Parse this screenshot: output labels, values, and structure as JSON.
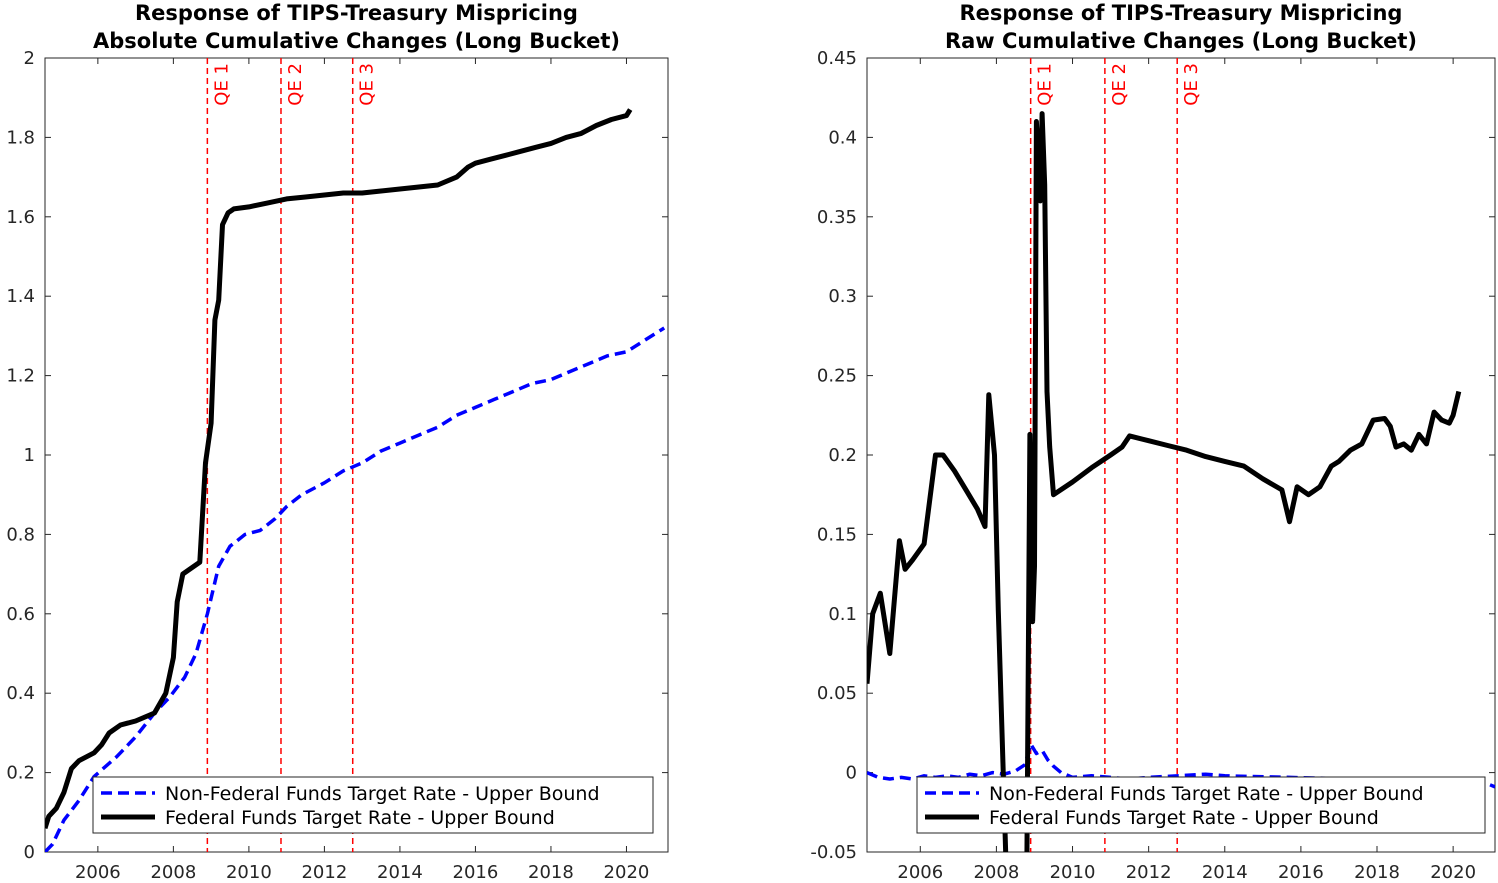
{
  "chart_data": [
    {
      "type": "line",
      "title": [
        "Response of TIPS-Treasury Mispricing",
        "Absolute Cumulative Changes (Long Bucket)"
      ],
      "xlabel": "",
      "ylabel": "",
      "xlim": [
        2004.6,
        2021.1
      ],
      "ylim": [
        0,
        2
      ],
      "xticks": [
        2006,
        2008,
        2010,
        2012,
        2014,
        2016,
        2018,
        2020
      ],
      "yticks": [
        0,
        0.2,
        0.4,
        0.6,
        0.8,
        1,
        1.2,
        1.4,
        1.6,
        1.8,
        2
      ],
      "ytick_labels": [
        "0",
        "0.2",
        "0.4",
        "0.6",
        "0.8",
        "1",
        "1.2",
        "1.4",
        "1.6",
        "1.8",
        "2"
      ],
      "grid": false,
      "legend_position": "bottom-right",
      "vlines": [
        {
          "label": "QE 1",
          "x": 2008.9
        },
        {
          "label": "QE 2",
          "x": 2010.85
        },
        {
          "label": "QE 3",
          "x": 2012.75
        }
      ],
      "series": [
        {
          "name": "Non-Federal Funds Target Rate - Upper Bound",
          "color": "#0000ff",
          "style": "dashed",
          "x": [
            2004.6,
            2004.8,
            2005.1,
            2005.5,
            2005.9,
            2006.5,
            2007.0,
            2007.5,
            2007.9,
            2008.3,
            2008.6,
            2008.9,
            2009.2,
            2009.5,
            2009.9,
            2010.3,
            2010.7,
            2011.0,
            2011.4,
            2012.0,
            2012.5,
            2013.0,
            2013.5,
            2014.0,
            2014.5,
            2015.0,
            2015.5,
            2016.0,
            2016.5,
            2017.0,
            2017.5,
            2018.0,
            2018.5,
            2019.0,
            2019.5,
            2020.0,
            2020.5,
            2021.0
          ],
          "y": [
            0.0,
            0.02,
            0.08,
            0.13,
            0.19,
            0.24,
            0.29,
            0.35,
            0.39,
            0.44,
            0.5,
            0.6,
            0.72,
            0.77,
            0.8,
            0.81,
            0.84,
            0.87,
            0.9,
            0.93,
            0.96,
            0.98,
            1.01,
            1.03,
            1.05,
            1.07,
            1.1,
            1.12,
            1.14,
            1.16,
            1.18,
            1.19,
            1.21,
            1.23,
            1.25,
            1.26,
            1.29,
            1.32
          ]
        },
        {
          "name": "Federal Funds Target Rate - Upper Bound",
          "color": "#000000",
          "style": "solid",
          "x": [
            2004.6,
            2004.7,
            2004.9,
            2005.1,
            2005.3,
            2005.5,
            2005.9,
            2006.1,
            2006.3,
            2006.6,
            2007.0,
            2007.5,
            2007.8,
            2008.0,
            2008.1,
            2008.25,
            2008.4,
            2008.7,
            2008.85,
            2009.0,
            2009.1,
            2009.2,
            2009.3,
            2009.45,
            2009.6,
            2010.0,
            2010.5,
            2011.0,
            2011.5,
            2012.0,
            2012.5,
            2013.0,
            2013.5,
            2014.0,
            2014.5,
            2015.0,
            2015.5,
            2015.8,
            2016.0,
            2016.4,
            2016.8,
            2017.2,
            2017.6,
            2018.0,
            2018.4,
            2018.8,
            2019.2,
            2019.6,
            2020.0,
            2020.1
          ],
          "y": [
            0.06,
            0.09,
            0.11,
            0.15,
            0.21,
            0.23,
            0.25,
            0.27,
            0.3,
            0.32,
            0.33,
            0.35,
            0.4,
            0.49,
            0.63,
            0.7,
            0.71,
            0.73,
            0.98,
            1.08,
            1.34,
            1.39,
            1.58,
            1.61,
            1.62,
            1.625,
            1.635,
            1.645,
            1.65,
            1.655,
            1.66,
            1.66,
            1.665,
            1.67,
            1.675,
            1.68,
            1.7,
            1.725,
            1.735,
            1.745,
            1.755,
            1.765,
            1.775,
            1.785,
            1.8,
            1.81,
            1.83,
            1.845,
            1.855,
            1.87
          ]
        }
      ]
    },
    {
      "type": "line",
      "title": [
        "Response of TIPS-Treasury Mispricing",
        "Raw Cumulative Changes (Long Bucket)"
      ],
      "xlabel": "",
      "ylabel": "",
      "xlim": [
        2004.6,
        2021.1
      ],
      "ylim": [
        -0.05,
        0.45
      ],
      "xticks": [
        2006,
        2008,
        2010,
        2012,
        2014,
        2016,
        2018,
        2020
      ],
      "yticks": [
        -0.05,
        0,
        0.05,
        0.1,
        0.15,
        0.2,
        0.25,
        0.3,
        0.35,
        0.4,
        0.45
      ],
      "ytick_labels": [
        "-0.05",
        "0",
        "0.05",
        "0.1",
        "0.15",
        "0.2",
        "0.25",
        "0.3",
        "0.35",
        "0.4",
        "0.45"
      ],
      "grid": false,
      "legend_position": "bottom-right",
      "vlines": [
        {
          "label": "QE 1",
          "x": 2008.9
        },
        {
          "label": "QE 2",
          "x": 2010.85
        },
        {
          "label": "QE 3",
          "x": 2012.75
        }
      ],
      "series": [
        {
          "name": "Non-Federal Funds Target Rate - Upper Bound",
          "color": "#0000ff",
          "style": "dashed",
          "x": [
            2004.6,
            2004.9,
            2005.2,
            2005.5,
            2005.8,
            2006.1,
            2006.4,
            2006.7,
            2007.0,
            2007.3,
            2007.6,
            2007.9,
            2008.2,
            2008.5,
            2008.75,
            2008.9,
            2009.05,
            2009.2,
            2009.35,
            2009.5,
            2009.7,
            2010.0,
            2010.5,
            2011.0,
            2011.5,
            2012.0,
            2013.5,
            2014.0,
            2020.8,
            2021.1
          ],
          "y": [
            0.0,
            -0.003,
            -0.004,
            -0.003,
            -0.004,
            -0.002,
            -0.003,
            -0.002,
            -0.003,
            -0.001,
            -0.002,
            0.0,
            -0.001,
            0.001,
            0.005,
            0.018,
            0.012,
            0.014,
            0.008,
            0.004,
            0.0,
            -0.003,
            -0.002,
            -0.003,
            -0.004,
            -0.003,
            -0.001,
            -0.002,
            -0.006,
            -0.009
          ]
        },
        {
          "name": "Federal Funds Target Rate - Upper Bound",
          "color": "#000000",
          "style": "solid",
          "x": [
            2004.6,
            2004.75,
            2004.95,
            2005.2,
            2005.45,
            2005.6,
            2005.8,
            2006.1,
            2006.4,
            2006.6,
            2006.9,
            2007.2,
            2007.5,
            2007.7,
            2007.8,
            2007.95,
            2008.05,
            2008.25,
            2008.4,
            2008.6,
            2008.8,
            2008.88,
            2008.95,
            2009.0,
            2009.05,
            2009.15,
            2009.2,
            2009.27,
            2009.33,
            2009.4,
            2009.5,
            2010.0,
            2010.5,
            2011.0,
            2011.3,
            2011.5,
            2012.0,
            2012.5,
            2013.0,
            2013.5,
            2014.0,
            2014.5,
            2015.0,
            2015.5,
            2015.7,
            2015.9,
            2016.2,
            2016.5,
            2016.8,
            2017.0,
            2017.3,
            2017.6,
            2017.9,
            2018.2,
            2018.35,
            2018.5,
            2018.7,
            2018.9,
            2019.1,
            2019.3,
            2019.5,
            2019.7,
            2019.9,
            2020.0,
            2020.15
          ],
          "y": [
            0.056,
            0.1,
            0.113,
            0.075,
            0.146,
            0.128,
            0.134,
            0.144,
            0.2,
            0.2,
            0.19,
            0.178,
            0.166,
            0.155,
            0.238,
            0.2,
            0.102,
            -0.055,
            -0.055,
            -0.055,
            -0.055,
            0.213,
            0.095,
            0.13,
            0.41,
            0.36,
            0.415,
            0.37,
            0.24,
            0.205,
            0.175,
            0.183,
            0.192,
            0.2,
            0.205,
            0.212,
            0.209,
            0.206,
            0.203,
            0.199,
            0.196,
            0.193,
            0.185,
            0.178,
            0.158,
            0.18,
            0.175,
            0.18,
            0.193,
            0.196,
            0.203,
            0.207,
            0.222,
            0.223,
            0.218,
            0.205,
            0.207,
            0.203,
            0.213,
            0.207,
            0.227,
            0.222,
            0.22,
            0.225,
            0.24
          ]
        }
      ]
    }
  ]
}
